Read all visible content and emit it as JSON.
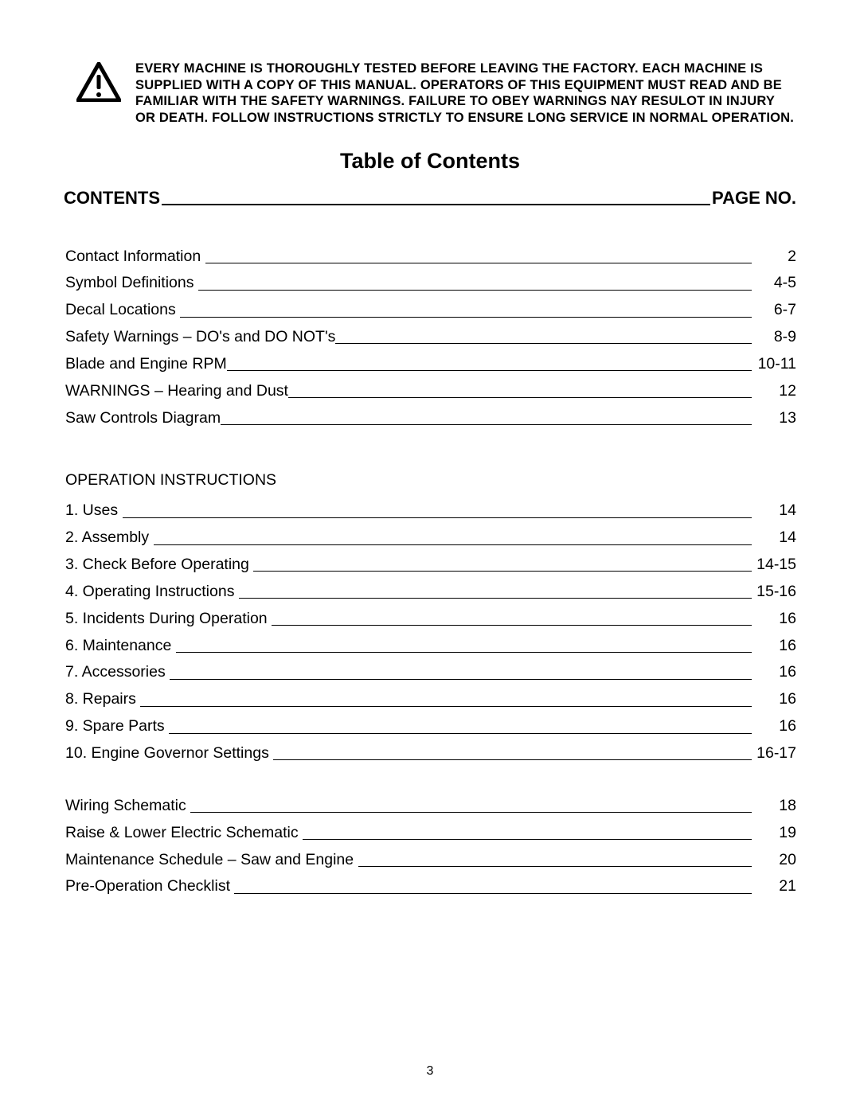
{
  "colors": {
    "background": "#ffffff",
    "text": "#000000",
    "rule": "#000000"
  },
  "typography": {
    "body_font": "Arial",
    "header_text_fontsize": 16.5,
    "title_fontsize": 27,
    "contents_header_fontsize": 22,
    "toc_fontsize": 19.5,
    "page_number_fontsize": 16
  },
  "header": {
    "warning_text": "EVERY MACHINE IS THOROUGHLY TESTED BEFORE LEAVING THE FACTORY. EACH MACHINE IS SUPPLIED WITH A COPY OF THIS MANUAL. OPERATORS OF THIS EQUIPMENT MUST READ AND BE FAMILIAR WITH THE SAFETY WARNINGS. FAILURE TO OBEY WARNINGS NAY RESULOT IN INJURY OR DEATH. FOLLOW  INSTRUCTIONS STRICTLY TO ENSURE LONG SERVICE IN NORMAL OPERATION."
  },
  "title": "Table of Contents",
  "contents_header": {
    "left": "CONTENTS",
    "right": "PAGE NO."
  },
  "toc_group_1": [
    {
      "label": "Contact Information ",
      "page": "2"
    },
    {
      "label": "Symbol Definitions ",
      "page": "4-5"
    },
    {
      "label": "Decal Locations ",
      "page": "6-7"
    },
    {
      "label": "Safety Warnings – DO's and DO NOT's",
      "page": "8-9"
    },
    {
      "label": "Blade and Engine RPM",
      "page": "10-11"
    },
    {
      "label": "WARNINGS – Hearing and Dust",
      "page": "12"
    },
    {
      "label": "Saw Controls Diagram",
      "page": "13"
    }
  ],
  "operation_heading": "OPERATION INSTRUCTIONS",
  "toc_group_2": [
    {
      "label": "1. Uses ",
      "page": "14"
    },
    {
      "label": "2. Assembly ",
      "page": "14"
    },
    {
      "label": "3. Check Before Operating ",
      "page": "14-15"
    },
    {
      "label": "4. Operating Instructions ",
      "page": "15-16"
    },
    {
      "label": "5. Incidents During Operation ",
      "page": "16"
    },
    {
      "label": "6. Maintenance ",
      "page": "16"
    },
    {
      "label": "7. Accessories ",
      "page": "16"
    },
    {
      "label": "8. Repairs ",
      "page": "16"
    },
    {
      "label": "9. Spare Parts ",
      "page": "16"
    },
    {
      "label": "10. Engine Governor Settings ",
      "page": "16-17"
    }
  ],
  "toc_group_3": [
    {
      "label": "Wiring Schematic ",
      "page": "18"
    },
    {
      "label": "Raise & Lower Electric Schematic ",
      "page": "19"
    },
    {
      "label": "Maintenance Schedule – Saw and Engine ",
      "page": "20"
    },
    {
      "label": "Pre-Operation Checklist ",
      "page": "21"
    }
  ],
  "page_number": "3"
}
